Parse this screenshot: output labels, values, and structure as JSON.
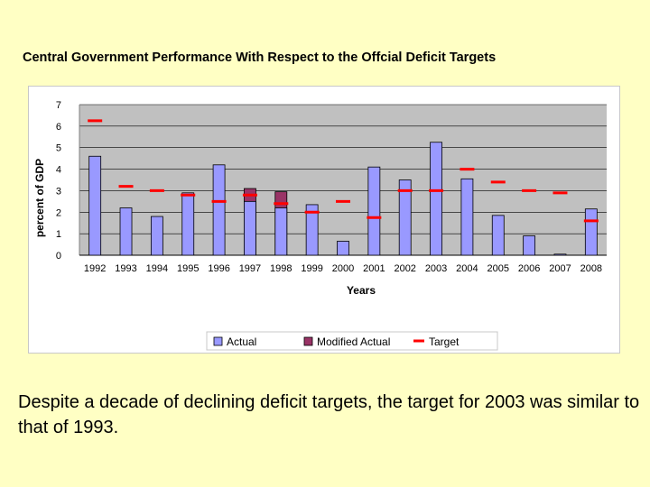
{
  "caption": "Despite a decade of declining deficit targets, the target for 2003 was similar to that of 1993.",
  "colors": {
    "background": "#FFFFC4",
    "plot_area": "#C0C0C0",
    "actual": "#9999FF",
    "modified_actual": "#993366",
    "target": "#FF0000",
    "bar_outline": "#000000"
  },
  "chart_data": {
    "type": "bar",
    "title": "Central Government Performance With Respect to the Offcial Deficit Targets",
    "xlabel": "Years",
    "ylabel": "percent of GDP",
    "ylim": [
      0,
      7
    ],
    "yticks": [
      0,
      1,
      2,
      3,
      4,
      5,
      6,
      7
    ],
    "grid": true,
    "legend_position": "bottom",
    "categories": [
      "1992",
      "1993",
      "1994",
      "1995",
      "1996",
      "1997",
      "1998",
      "1999",
      "2000",
      "2001",
      "2002",
      "2003",
      "2004",
      "2005",
      "2006",
      "2007",
      "2008"
    ],
    "series": [
      {
        "name": "Actual",
        "kind": "bar",
        "values": [
          4.6,
          2.2,
          1.8,
          2.9,
          4.2,
          2.5,
          2.2,
          2.35,
          0.65,
          4.1,
          3.5,
          5.25,
          3.55,
          1.85,
          0.9,
          0.05,
          2.15
        ]
      },
      {
        "name": "Modified Actual",
        "kind": "bar",
        "values": [
          null,
          null,
          null,
          null,
          null,
          3.1,
          2.95,
          null,
          null,
          null,
          null,
          null,
          null,
          null,
          null,
          null,
          null
        ]
      },
      {
        "name": "Target",
        "kind": "marker",
        "values": [
          6.25,
          3.2,
          3.0,
          2.8,
          2.5,
          2.8,
          2.4,
          2.0,
          2.5,
          1.75,
          3.0,
          3.0,
          4.0,
          3.4,
          3.0,
          2.9,
          1.6
        ]
      }
    ]
  }
}
